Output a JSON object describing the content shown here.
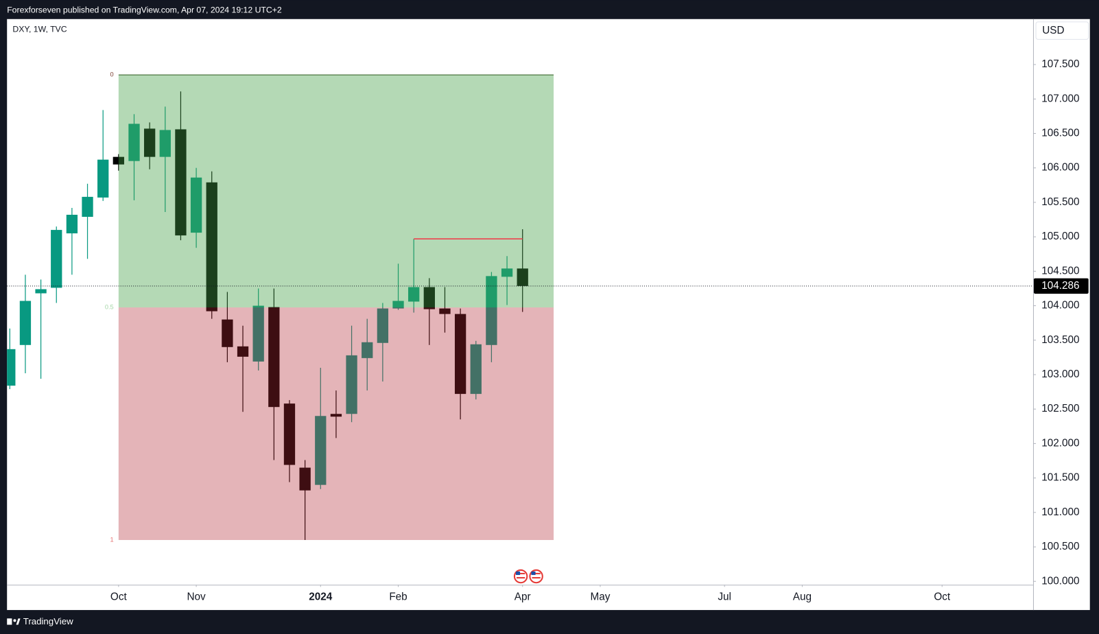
{
  "header": "Forexforseven published on TradingView.com, Apr 07, 2024 19:12 UTC+2",
  "footer": "TradingView",
  "chart_data": {
    "type": "candlestick",
    "symbol": "DXY, 1W, TVC",
    "currency": "USD",
    "x": [
      0,
      1,
      2,
      3,
      4,
      5,
      6,
      7,
      8,
      9,
      10,
      11,
      12,
      13,
      14,
      15,
      16,
      17,
      18,
      19,
      20,
      21,
      22,
      23,
      24,
      25,
      26,
      27,
      28,
      29,
      30,
      31,
      32,
      33
    ],
    "open": [
      102.84,
      103.43,
      104.18,
      104.26,
      105.05,
      105.29,
      105.57,
      106.16,
      106.1,
      106.57,
      106.16,
      106.56,
      105.06,
      105.79,
      103.8,
      103.41,
      103.19,
      103.98,
      102.58,
      101.65,
      101.4,
      102.43,
      102.43,
      103.24,
      103.46,
      103.96,
      104.06,
      104.27,
      103.96,
      103.88,
      102.72,
      103.43,
      104.42,
      104.54
    ],
    "high": [
      103.67,
      104.45,
      104.38,
      105.15,
      105.42,
      105.77,
      106.84,
      106.2,
      106.78,
      106.66,
      106.89,
      107.11,
      106.0,
      105.95,
      104.2,
      103.71,
      104.25,
      104.25,
      102.63,
      101.76,
      103.1,
      102.77,
      103.71,
      103.81,
      104.04,
      104.61,
      104.97,
      104.4,
      104.27,
      103.96,
      103.49,
      104.49,
      104.72,
      105.11
    ],
    "low": [
      102.79,
      103.02,
      102.94,
      104.04,
      104.45,
      104.68,
      105.52,
      105.96,
      105.53,
      105.98,
      105.36,
      104.95,
      104.84,
      103.81,
      103.18,
      102.46,
      103.06,
      101.76,
      101.44,
      100.6,
      101.34,
      102.08,
      102.31,
      102.77,
      102.9,
      103.94,
      103.9,
      103.43,
      103.61,
      102.35,
      102.64,
      103.18,
      104.01,
      103.91
    ],
    "close": [
      103.37,
      104.07,
      104.24,
      105.1,
      105.32,
      105.58,
      106.12,
      106.05,
      106.64,
      106.16,
      106.55,
      105.02,
      105.86,
      103.92,
      103.4,
      103.26,
      104.0,
      102.53,
      101.69,
      101.32,
      102.4,
      102.39,
      103.28,
      103.47,
      103.96,
      104.07,
      104.27,
      103.95,
      103.88,
      102.72,
      103.44,
      104.43,
      104.54,
      104.286
    ],
    "up_color": "#089981",
    "down_color": "#000000",
    "xlim": [
      -0.18,
      65.86
    ],
    "xticks": [
      {
        "value": 7,
        "label": "Oct"
      },
      {
        "value": 12,
        "label": "Nov"
      },
      {
        "value": 20,
        "label": "2024"
      },
      {
        "value": 25,
        "label": "Feb"
      },
      {
        "value": 33,
        "label": "Apr"
      },
      {
        "value": 38,
        "label": "May"
      },
      {
        "value": 46,
        "label": "Jul"
      },
      {
        "value": 51,
        "label": "Aug"
      },
      {
        "value": 60,
        "label": "Oct"
      }
    ],
    "ylim": [
      99.95,
      108.16
    ],
    "yticks": [
      {
        "value": 100,
        "label": "100.000"
      },
      {
        "value": 100.5,
        "label": "100.500"
      },
      {
        "value": 101,
        "label": "101.000"
      },
      {
        "value": 101.5,
        "label": "101.500"
      },
      {
        "value": 102,
        "label": "102.000"
      },
      {
        "value": 102.5,
        "label": "102.500"
      },
      {
        "value": 103,
        "label": "103.000"
      },
      {
        "value": 103.5,
        "label": "103.500"
      },
      {
        "value": 104,
        "label": "104.000"
      },
      {
        "value": 104.5,
        "label": "104.500"
      },
      {
        "value": 105,
        "label": "105.000"
      },
      {
        "value": 105.5,
        "label": "105.500"
      },
      {
        "value": 106,
        "label": "106.000"
      },
      {
        "value": 106.5,
        "label": "106.500"
      },
      {
        "value": 107,
        "label": "107.000"
      },
      {
        "value": 107.5,
        "label": "107.500"
      }
    ],
    "grid": false,
    "fib_range": {
      "high": 107.35,
      "low": 100.6,
      "x_start": 7,
      "x_end": 35,
      "levels": [
        0,
        0.5,
        1
      ],
      "upper_color": "rgba(67,160,71,0.4)",
      "lower_color": "rgba(178,40,51,0.35)"
    },
    "hline": {
      "price": 104.97,
      "x_start": 26,
      "x_end": 33,
      "color": "#f23645"
    }
  }
}
